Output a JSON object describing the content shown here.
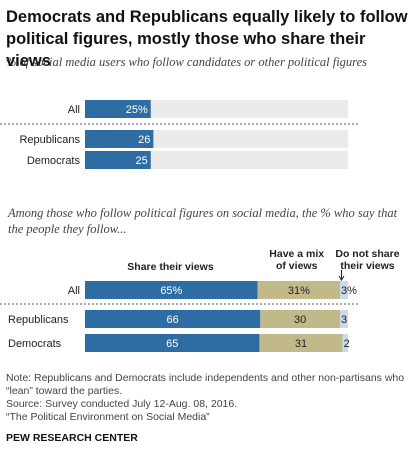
{
  "title": "Democrats and Republicans equally likely to follow political figures, mostly those who share their views",
  "chart1_subtitle": "% of social media users who follow candidates or other political figures",
  "chart2_subtitle": "Among those who follow political figures on social media, the % who say that the people they follow...",
  "colors": {
    "share": "#2e6ca4",
    "mix": "#c2b98b",
    "not_share": "#c9dbea",
    "track": "#ebebeb"
  },
  "chart_data": [
    {
      "type": "bar",
      "orientation": "horizontal",
      "title": "% of social media users who follow candidates or other political figures",
      "categories": [
        "All",
        "Republicans",
        "Democrats"
      ],
      "series": [
        {
          "values": [
            25,
            26,
            25
          ]
        }
      ],
      "data_labels": [
        "25%",
        "26",
        "25"
      ],
      "xlim": [
        0,
        100
      ]
    },
    {
      "type": "bar",
      "orientation": "horizontal",
      "stacked": true,
      "title": "Among those who follow political figures on social media, the % who say that the people they follow...",
      "categories": [
        "All",
        "Republicans",
        "Democrats"
      ],
      "series": [
        {
          "name": "Share their views",
          "values": [
            65,
            66,
            65
          ],
          "labels": [
            "65%",
            "66",
            "65"
          ]
        },
        {
          "name": "Have a mix of views",
          "values": [
            31,
            30,
            31
          ],
          "labels": [
            "31%",
            "30",
            "31"
          ]
        },
        {
          "name": "Do not share their views",
          "values": [
            3,
            3,
            2
          ],
          "labels": [
            "3%",
            "3",
            "2"
          ]
        }
      ],
      "legend_lines": [
        [
          "Share their views"
        ],
        [
          "Have a mix",
          "of views"
        ],
        [
          "Do not share",
          "their views"
        ]
      ],
      "xlim": [
        0,
        100
      ]
    }
  ],
  "notes": [
    "Note: Republicans and Democrats include independents and other non-partisans who",
    "“lean” toward the parties.",
    " Source: Survey conducted July 12-Aug. 08, 2016.",
    "“The Political Environment on Social Media”"
  ],
  "source_org": "PEW RESEARCH CENTER"
}
